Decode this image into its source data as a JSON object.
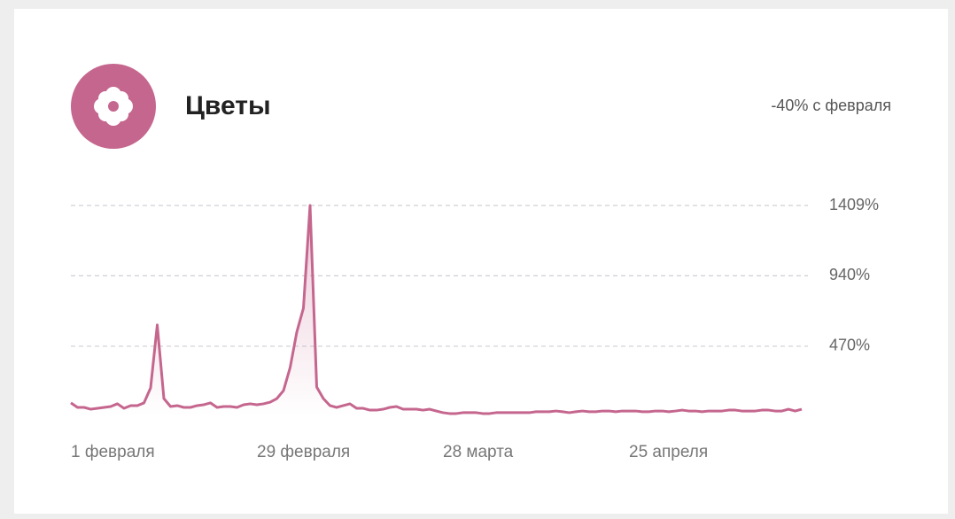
{
  "chart_data": {
    "type": "line",
    "title": "Цветы",
    "annotation": "-40% с февраля",
    "categories": [
      "1 февраля",
      null,
      null,
      null,
      null,
      null,
      null,
      null,
      null,
      null,
      null,
      null,
      null,
      null,
      null,
      null,
      null,
      null,
      null,
      null,
      null,
      null,
      null,
      null,
      null,
      null,
      null,
      null,
      "29 февраля",
      null,
      null,
      null,
      null,
      null,
      null,
      null,
      null,
      null,
      null,
      null,
      null,
      null,
      null,
      null,
      null,
      null,
      null,
      null,
      null,
      null,
      null,
      null,
      null,
      null,
      null,
      null,
      "28 марта",
      null,
      null,
      null,
      null,
      null,
      null,
      null,
      null,
      null,
      null,
      null,
      null,
      null,
      null,
      null,
      null,
      null,
      null,
      null,
      null,
      null,
      null,
      null,
      null,
      null,
      null,
      null,
      "25 апреля",
      null,
      null,
      null,
      null,
      null,
      null,
      null,
      null,
      null,
      null,
      null,
      null,
      null,
      null,
      null,
      null,
      null,
      null,
      null,
      null,
      null,
      null,
      null,
      null,
      null,
      null
    ],
    "series": [
      {
        "color": "#c5668e",
        "values": [
          92,
          62,
          62,
          50,
          56,
          62,
          68,
          86,
          56,
          74,
          74,
          92,
          192,
          612,
          121,
          68,
          74,
          62,
          62,
          74,
          80,
          92,
          62,
          68,
          68,
          62,
          80,
          86,
          80,
          86,
          97,
          121,
          174,
          328,
          564,
          724,
          1409,
          198,
          121,
          74,
          62,
          74,
          86,
          56,
          56,
          44,
          44,
          50,
          62,
          68,
          50,
          50,
          50,
          44,
          50,
          38,
          27,
          21,
          21,
          27,
          27,
          27,
          21,
          21,
          27,
          27,
          27,
          27,
          27,
          27,
          33,
          33,
          33,
          38,
          33,
          27,
          33,
          38,
          33,
          33,
          38,
          38,
          33,
          38,
          38,
          38,
          33,
          33,
          38,
          38,
          33,
          38,
          44,
          38,
          38,
          33,
          38,
          38,
          38,
          44,
          44,
          38,
          38,
          38,
          44,
          44,
          38,
          38,
          50,
          38,
          50
        ]
      }
    ],
    "ylim": [
      0,
      1409
    ],
    "yticks": [
      {
        "value": 470,
        "label": "470%"
      },
      {
        "value": 940,
        "label": "940%"
      },
      {
        "value": 1409,
        "label": "1409%"
      }
    ],
    "grid": true
  }
}
